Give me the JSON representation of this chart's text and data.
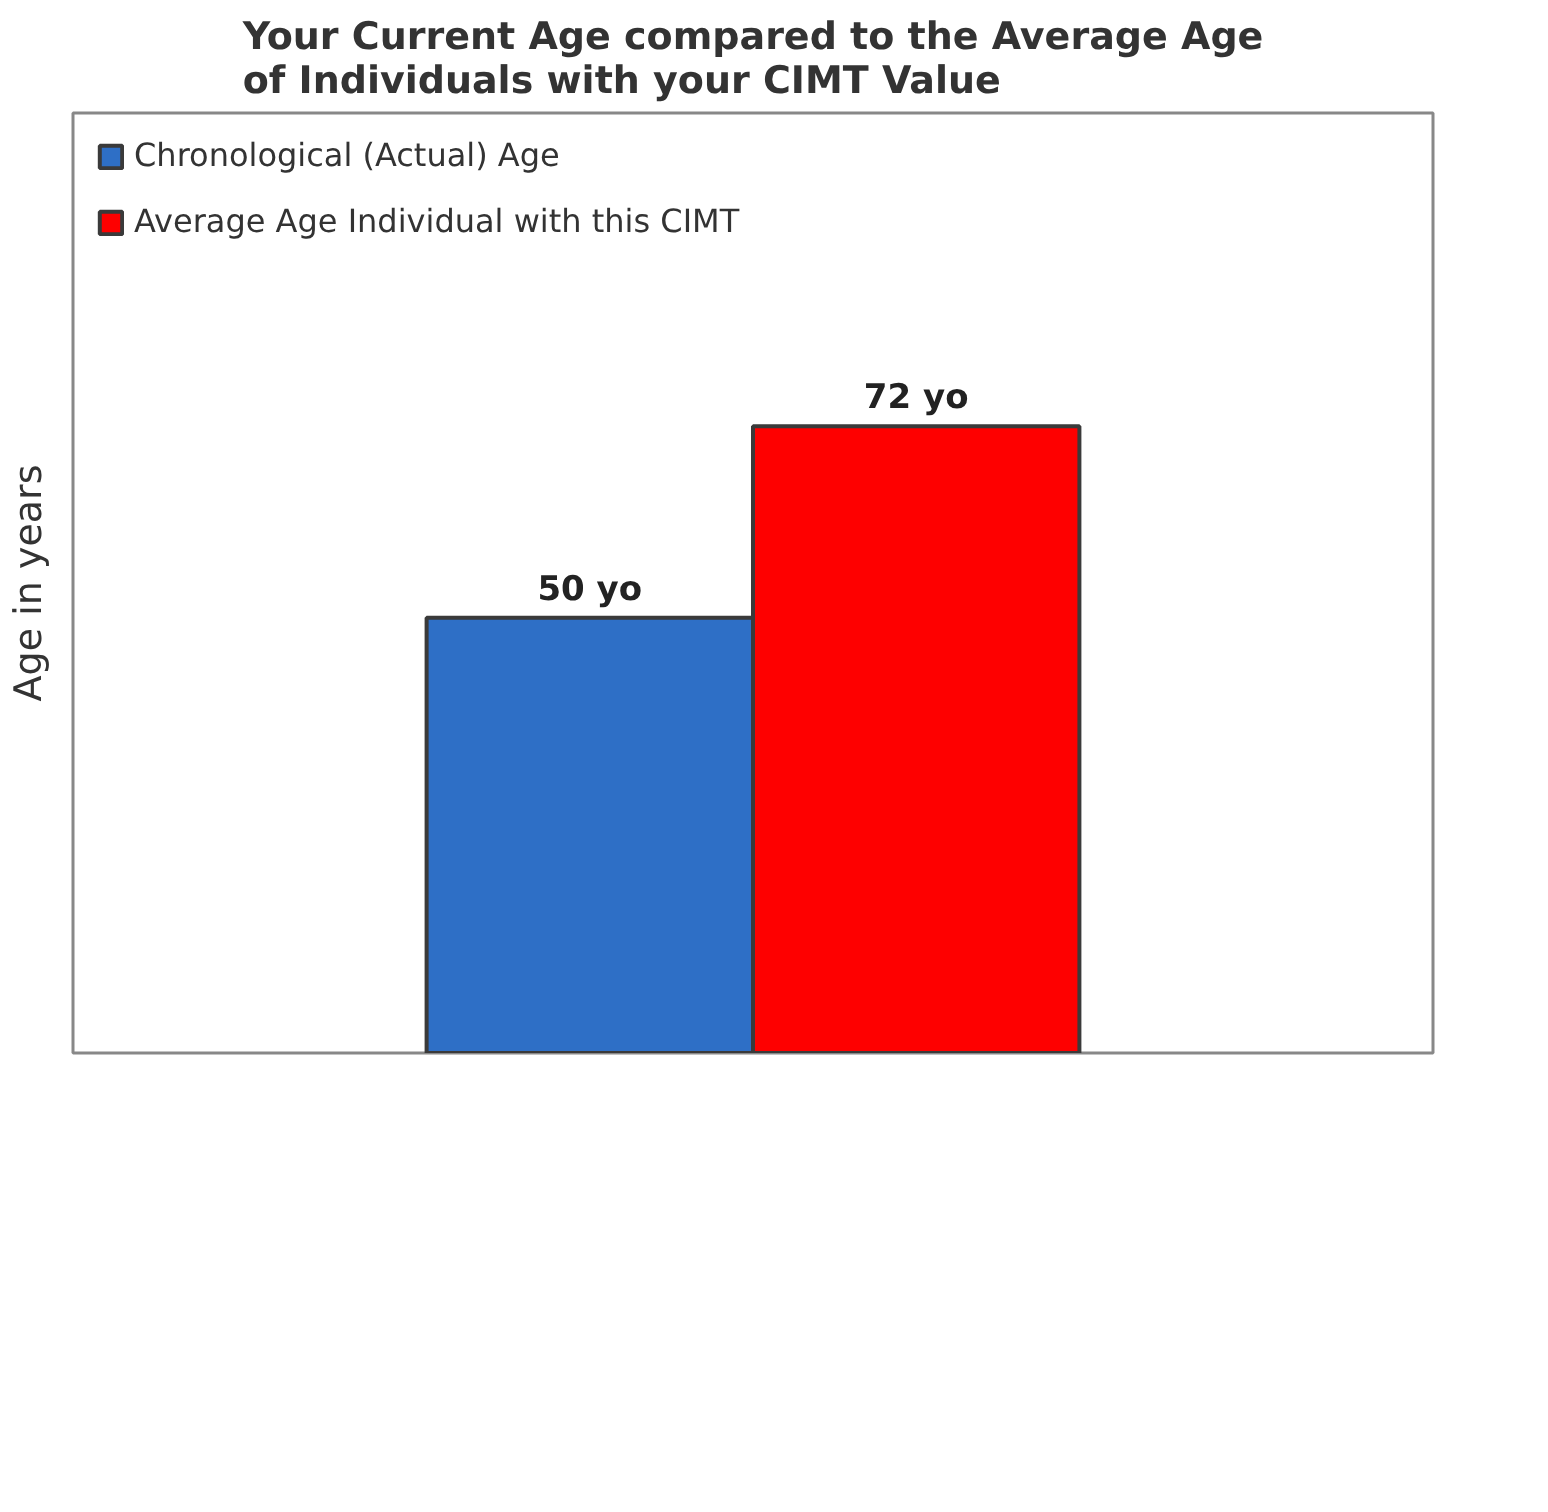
{
  "chart_data": {
    "type": "bar",
    "title": "Your Current Age compared to the Average Age of Individuals with your CIMT Value",
    "ylabel": "Age in years",
    "categories": [
      null
    ],
    "series": [
      {
        "name": "Chronological (Actual) Age",
        "color": "#2e6fc6",
        "values": [
          50
        ],
        "value_labels": [
          "50 yo"
        ]
      },
      {
        "name": "Average Age Individual with this CIMT",
        "color": "#fe0000",
        "values": [
          72
        ],
        "value_labels": [
          "72 yo"
        ]
      }
    ],
    "tick_labels": false,
    "legend": "top left"
  }
}
